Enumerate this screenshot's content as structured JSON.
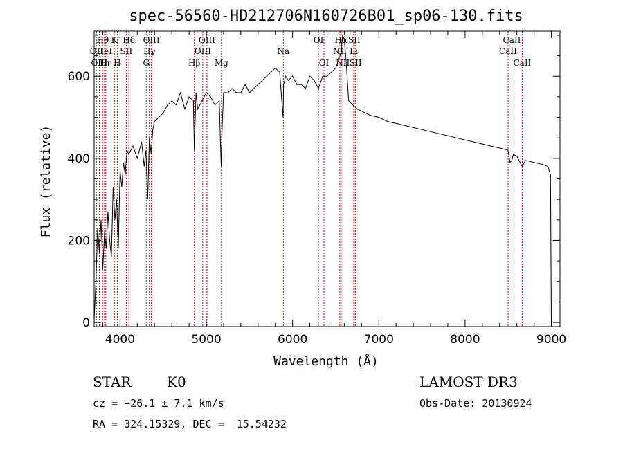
{
  "chart_data": {
    "type": "line",
    "title": "spec-56560-HD212706N160726B01_sp06-130.fits",
    "xlabel": "Wavelength (Å)",
    "ylabel": "Flux (relative)",
    "xlim": [
      3700,
      9100
    ],
    "ylim": [
      -10,
      710
    ],
    "xticks": [
      4000,
      5000,
      6000,
      7000,
      8000,
      9000
    ],
    "yticks": [
      0,
      200,
      400,
      600
    ],
    "grid": false,
    "series": [
      {
        "x": [
          3700,
          3720,
          3740,
          3760,
          3780,
          3800,
          3820,
          3840,
          3860,
          3880,
          3900,
          3920,
          3940,
          3960,
          3980,
          4000,
          4020,
          4040,
          4060,
          4080,
          4100,
          4150,
          4200,
          4250,
          4280,
          4300,
          4320,
          4340,
          4360,
          4380,
          4400,
          4450,
          4500,
          4550,
          4600,
          4650,
          4700,
          4750,
          4800,
          4850,
          4861,
          4880,
          4900,
          4950,
          5000,
          5050,
          5100,
          5150,
          5172,
          5183,
          5200,
          5250,
          5300,
          5350,
          5400,
          5450,
          5500,
          5550,
          5600,
          5650,
          5700,
          5750,
          5800,
          5850,
          5890,
          5896,
          5920,
          5950,
          6000,
          6050,
          6100,
          6150,
          6200,
          6250,
          6300,
          6350,
          6400,
          6450,
          6500,
          6550,
          6563,
          6580,
          6600,
          6620,
          6650,
          6700,
          6750,
          6800,
          6900,
          7000,
          7100,
          7200,
          7300,
          7400,
          7500,
          7600,
          7700,
          7800,
          7900,
          8000,
          8100,
          8200,
          8300,
          8400,
          8498,
          8520,
          8542,
          8560,
          8600,
          8662,
          8700,
          8800,
          8900,
          8960,
          8990,
          9000
        ],
        "values": [
          5,
          100,
          230,
          170,
          250,
          130,
          220,
          180,
          270,
          200,
          160,
          330,
          250,
          300,
          180,
          370,
          330,
          390,
          360,
          420,
          410,
          430,
          400,
          440,
          380,
          420,
          300,
          450,
          410,
          470,
          490,
          500,
          510,
          530,
          540,
          530,
          560,
          520,
          550,
          540,
          420,
          560,
          520,
          540,
          560,
          550,
          530,
          540,
          380,
          470,
          560,
          560,
          570,
          560,
          560,
          580,
          560,
          570,
          580,
          590,
          600,
          610,
          620,
          610,
          500,
          580,
          600,
          590,
          600,
          580,
          580,
          570,
          600,
          590,
          570,
          600,
          600,
          610,
          620,
          650,
          660,
          700,
          690,
          640,
          540,
          530,
          520,
          515,
          505,
          500,
          490,
          485,
          480,
          475,
          470,
          465,
          460,
          455,
          450,
          445,
          440,
          435,
          430,
          425,
          420,
          390,
          395,
          410,
          405,
          380,
          395,
          390,
          385,
          380,
          360,
          0
        ]
      }
    ],
    "spectral_lines": [
      {
        "label": "Hθ",
        "wl": 3798,
        "row": 1
      },
      {
        "label": "OII",
        "wl": 3727,
        "row": 2
      },
      {
        "label": "OIII",
        "wl": 3760,
        "row": 3
      },
      {
        "label": "HeI",
        "wl": 3820,
        "row": 2
      },
      {
        "label": "Hη",
        "wl": 3835,
        "row": 3
      },
      {
        "label": "K",
        "wl": 3934,
        "row": 1
      },
      {
        "label": "H",
        "wl": 3968,
        "row": 3
      },
      {
        "label": "SII",
        "wl": 4072,
        "row": 2
      },
      {
        "label": "Hδ",
        "wl": 4102,
        "row": 1
      },
      {
        "label": "OIII",
        "wl": 4363,
        "row": 1
      },
      {
        "label": "Hγ",
        "wl": 4340,
        "row": 2
      },
      {
        "label": "G",
        "wl": 4304,
        "row": 3
      },
      {
        "label": "Hβ",
        "wl": 4861,
        "row": 3
      },
      {
        "label": "OIII",
        "wl": 5007,
        "row": 1
      },
      {
        "label": "OIII",
        "wl": 4959,
        "row": 2
      },
      {
        "label": "Mg",
        "wl": 5175,
        "row": 3
      },
      {
        "label": "Na",
        "wl": 5893,
        "row": 2
      },
      {
        "label": "OI",
        "wl": 6300,
        "row": 1
      },
      {
        "label": "OI",
        "wl": 6364,
        "row": 3
      },
      {
        "label": "Hα",
        "wl": 6563,
        "row": 1
      },
      {
        "label": "NII",
        "wl": 6548,
        "row": 2
      },
      {
        "label": "NII",
        "wl": 6583,
        "row": 3
      },
      {
        "label": "SII",
        "wl": 6716,
        "row": 1
      },
      {
        "label": "Li",
        "wl": 6708,
        "row": 2
      },
      {
        "label": "SII",
        "wl": 6731,
        "row": 3
      },
      {
        "label": "CaII",
        "wl": 8542,
        "row": 1
      },
      {
        "label": "CaII",
        "wl": 8498,
        "row": 2
      },
      {
        "label": "CaII",
        "wl": 8662,
        "row": 3
      }
    ],
    "line_color": "#c00000",
    "series_color": "#000000"
  },
  "info": {
    "object_class": "STAR",
    "subclass": "K0",
    "survey": "LAMOST DR3",
    "redshift": "cz = −26.1 ± 7.1 km/s",
    "obs_date": "Obs-Date: 20130924",
    "coords": "RA = 324.15329, DEC =  15.54232"
  }
}
